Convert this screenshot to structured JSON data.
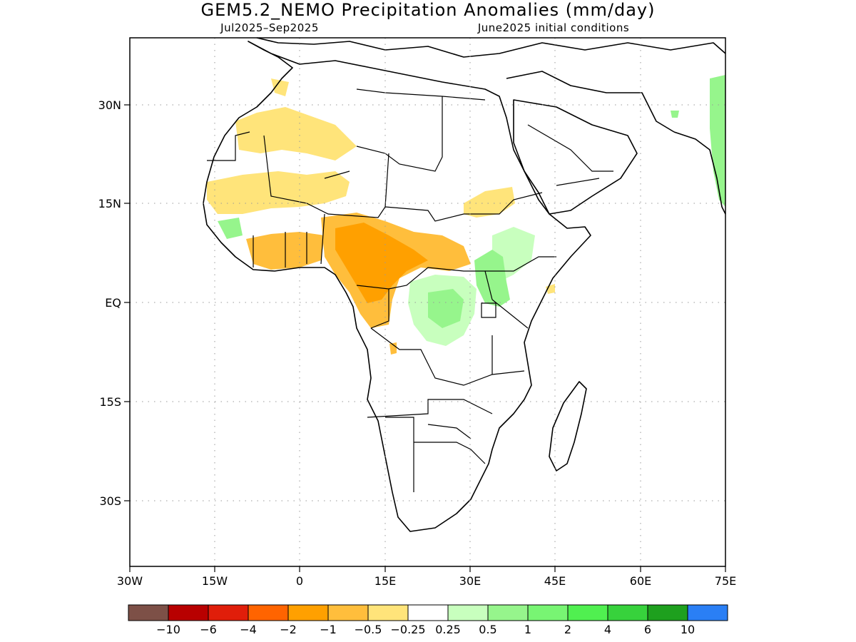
{
  "title": "GEM5.2_NEMO Precipitation Anomalies (mm/day)",
  "subtitle_left": "Jul2025–Sep2025",
  "subtitle_right": "June2025 initial conditions",
  "map": {
    "lon_range": [
      -30,
      75
    ],
    "lat_range": [
      -46,
      40
    ],
    "lon_ticks": [
      {
        "value": -30,
        "label": "30W"
      },
      {
        "value": -15,
        "label": "15W"
      },
      {
        "value": 0,
        "label": "0"
      },
      {
        "value": 15,
        "label": "15E"
      },
      {
        "value": 30,
        "label": "30E"
      },
      {
        "value": 45,
        "label": "45E"
      },
      {
        "value": 60,
        "label": "60E"
      },
      {
        "value": 75,
        "label": "75E"
      }
    ],
    "lat_ticks": [
      {
        "value": 30,
        "label": "30N"
      },
      {
        "value": 15,
        "label": "15N"
      },
      {
        "value": 0,
        "label": "EQ"
      },
      {
        "value": -15,
        "label": "15S"
      },
      {
        "value": -30,
        "label": "30S"
      }
    ],
    "grid": true
  },
  "colorbar": {
    "colors": [
      "#7d5047",
      "#b80000",
      "#e01e0a",
      "#ff6400",
      "#ffa000",
      "#ffbe3c",
      "#ffe47a",
      "#ffffff",
      "#c8ffbe",
      "#96f58c",
      "#78f573",
      "#50f050",
      "#37d23c",
      "#1ea01e",
      "#2a7ff5"
    ],
    "labels": [
      "−10",
      "−6",
      "−4",
      "−2",
      "−1",
      "−0.5",
      "−0.25",
      "0.25",
      "0.5",
      "1",
      "2",
      "4",
      "6",
      "10"
    ]
  }
}
